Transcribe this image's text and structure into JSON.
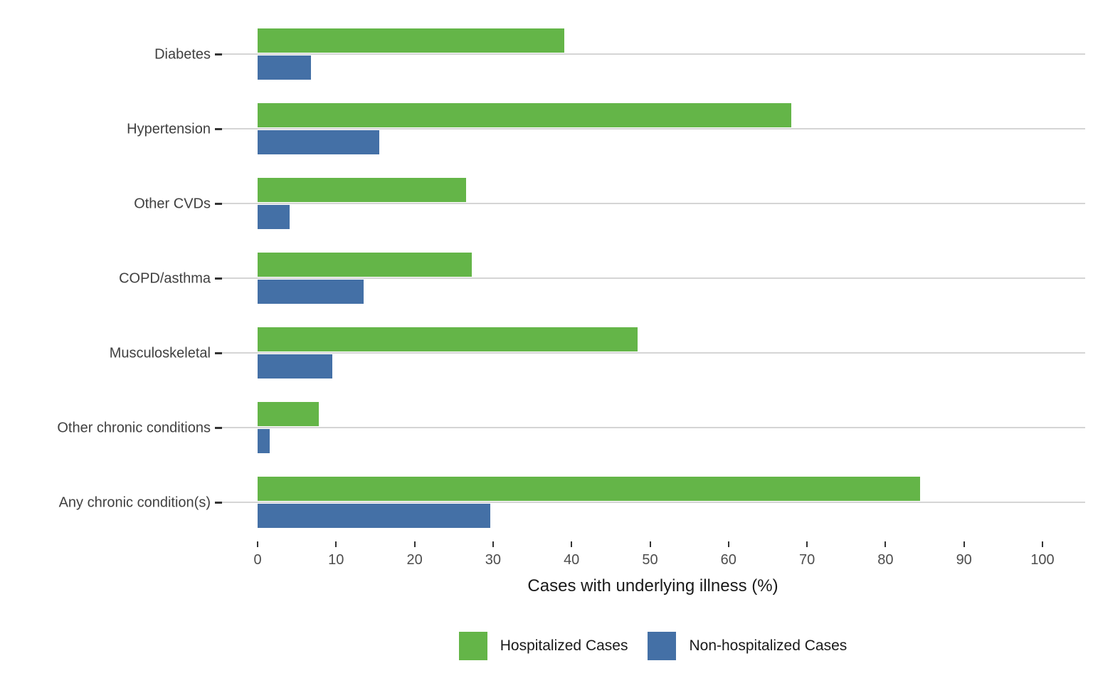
{
  "chart_data": {
    "type": "bar",
    "orientation": "horizontal",
    "title": "",
    "xlabel": "Cases with underlying illness (%)",
    "ylabel": "",
    "categories": [
      "Diabetes",
      "Hypertension",
      "Other CVDs",
      "COPD/asthma",
      "Musculoskeletal",
      "Other chronic conditions",
      "Any chronic condition(s)"
    ],
    "series": [
      {
        "name": "Hospitalized Cases",
        "color": "#64b548",
        "values": [
          39.1,
          68.0,
          26.6,
          27.3,
          48.4,
          7.8,
          84.4
        ]
      },
      {
        "name": "Non-hospitalized Cases",
        "color": "#4470a6",
        "values": [
          6.8,
          15.5,
          4.1,
          13.5,
          9.5,
          1.5,
          29.6
        ]
      }
    ],
    "x_axis": {
      "ticks": [
        0,
        10,
        20,
        30,
        40,
        50,
        60,
        70,
        80,
        90,
        100
      ],
      "range": [
        0,
        100
      ]
    },
    "grid": "horizontal-major-only",
    "legend_position": "bottom-center",
    "colors": {
      "background": "#ffffff",
      "gridline": "#d5d5d5",
      "tick": "#333333",
      "category_label": "#404040",
      "tick_label": "#4d4d4d",
      "axis_title": "#1a1a1a"
    }
  }
}
